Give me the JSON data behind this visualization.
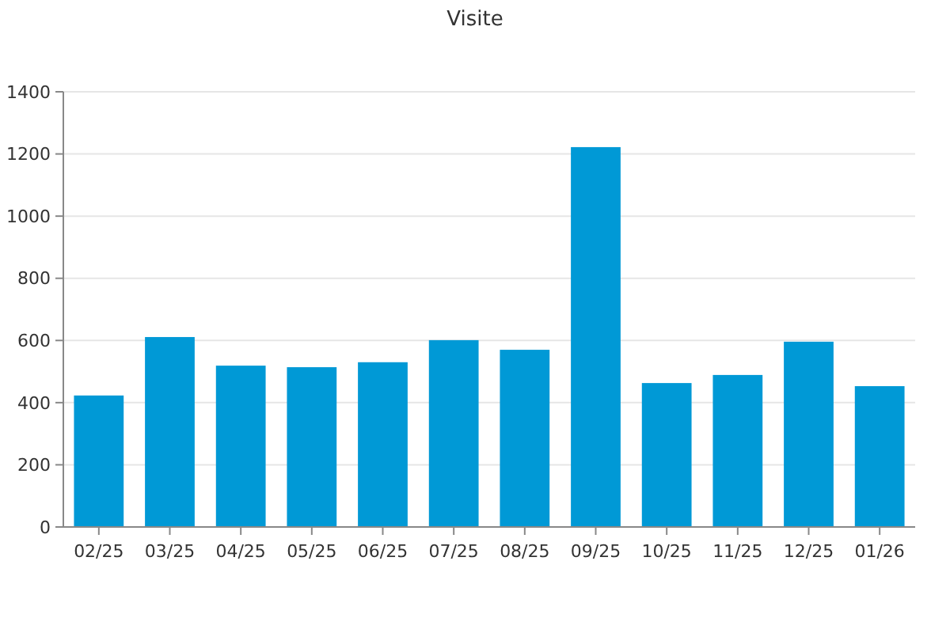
{
  "chart_data": {
    "type": "bar",
    "title": "Visite",
    "categories": [
      "02/25",
      "03/25",
      "04/25",
      "05/25",
      "06/25",
      "07/25",
      "08/25",
      "09/25",
      "10/25",
      "11/25",
      "12/25",
      "01/26"
    ],
    "values": [
      423,
      611,
      519,
      514,
      530,
      601,
      570,
      1222,
      463,
      489,
      596,
      453
    ],
    "color": "#0099d6",
    "ylim": [
      0,
      1400
    ],
    "yticks": [
      0,
      200,
      400,
      600,
      800,
      1000,
      1200,
      1400
    ],
    "grid": "y"
  }
}
